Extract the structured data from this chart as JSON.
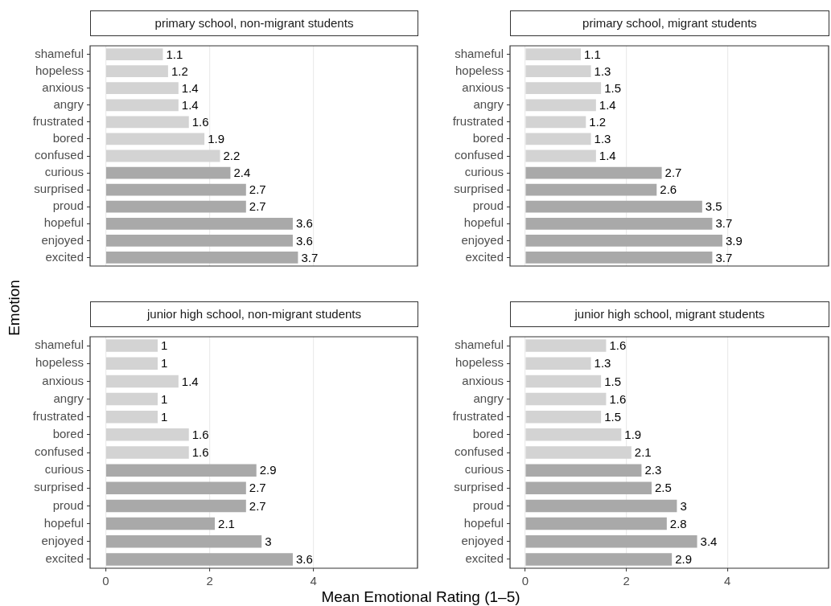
{
  "chart_data": [
    {
      "type": "bar",
      "orientation": "horizontal",
      "title": "primary school, non-migrant students",
      "ylabel": "Emotion",
      "categories": [
        "shameful",
        "hopeless",
        "anxious",
        "angry",
        "frustrated",
        "bored",
        "confused",
        "curious",
        "surprised",
        "proud",
        "hopeful",
        "enjoyed",
        "excited"
      ],
      "values": [
        1.1,
        1.2,
        1.4,
        1.4,
        1.6,
        1.9,
        2.2,
        2.4,
        2.7,
        2.7,
        3.6,
        3.6,
        3.7
      ],
      "colors": [
        "#d3d3d3",
        "#d3d3d3",
        "#d3d3d3",
        "#d3d3d3",
        "#d3d3d3",
        "#d3d3d3",
        "#d3d3d3",
        "#a9a9a9",
        "#a9a9a9",
        "#a9a9a9",
        "#a9a9a9",
        "#a9a9a9",
        "#a9a9a9"
      ],
      "xlim": [
        -0.3,
        6
      ],
      "xticks": [
        0,
        2,
        4
      ],
      "grid": "x",
      "data_labels": true,
      "tick_labels": "y"
    },
    {
      "type": "bar",
      "orientation": "horizontal",
      "title": "primary school, migrant students",
      "categories": [
        "shameful",
        "hopeless",
        "anxious",
        "angry",
        "frustrated",
        "bored",
        "confused",
        "curious",
        "surprised",
        "proud",
        "hopeful",
        "enjoyed",
        "excited"
      ],
      "values": [
        1.1,
        1.3,
        1.5,
        1.4,
        1.2,
        1.3,
        1.4,
        2.7,
        2.6,
        3.5,
        3.7,
        3.9,
        3.7
      ],
      "colors": [
        "#d3d3d3",
        "#d3d3d3",
        "#d3d3d3",
        "#d3d3d3",
        "#d3d3d3",
        "#d3d3d3",
        "#d3d3d3",
        "#a9a9a9",
        "#a9a9a9",
        "#a9a9a9",
        "#a9a9a9",
        "#a9a9a9",
        "#a9a9a9"
      ],
      "xlim": [
        -0.3,
        6
      ],
      "xticks": [
        0,
        2,
        4
      ],
      "grid": "x",
      "data_labels": true,
      "tick_labels": "y"
    },
    {
      "type": "bar",
      "orientation": "horizontal",
      "title": "junior high school, non-migrant students",
      "xlabel": "Mean Emotional Rating (1–5)",
      "categories": [
        "shameful",
        "hopeless",
        "anxious",
        "angry",
        "frustrated",
        "bored",
        "confused",
        "curious",
        "surprised",
        "proud",
        "hopeful",
        "enjoyed",
        "excited"
      ],
      "values": [
        1,
        1,
        1.4,
        1,
        1,
        1.6,
        1.6,
        2.9,
        2.7,
        2.7,
        2.1,
        3,
        3.6
      ],
      "colors": [
        "#d3d3d3",
        "#d3d3d3",
        "#d3d3d3",
        "#d3d3d3",
        "#d3d3d3",
        "#d3d3d3",
        "#d3d3d3",
        "#a9a9a9",
        "#a9a9a9",
        "#a9a9a9",
        "#a9a9a9",
        "#a9a9a9",
        "#a9a9a9"
      ],
      "xlim": [
        -0.3,
        6
      ],
      "xticks": [
        0,
        2,
        4
      ],
      "grid": "x",
      "data_labels": true
    },
    {
      "type": "bar",
      "orientation": "horizontal",
      "title": "junior high school, migrant students",
      "categories": [
        "shameful",
        "hopeless",
        "anxious",
        "angry",
        "frustrated",
        "bored",
        "confused",
        "curious",
        "surprised",
        "proud",
        "hopeful",
        "enjoyed",
        "excited"
      ],
      "values": [
        1.6,
        1.3,
        1.5,
        1.6,
        1.5,
        1.9,
        2.1,
        2.3,
        2.5,
        3,
        2.8,
        3.4,
        2.9
      ],
      "colors": [
        "#d3d3d3",
        "#d3d3d3",
        "#d3d3d3",
        "#d3d3d3",
        "#d3d3d3",
        "#d3d3d3",
        "#d3d3d3",
        "#a9a9a9",
        "#a9a9a9",
        "#a9a9a9",
        "#a9a9a9",
        "#a9a9a9",
        "#a9a9a9"
      ],
      "xlim": [
        -0.3,
        6
      ],
      "xticks": [
        0,
        2,
        4
      ],
      "grid": "x",
      "data_labels": true
    }
  ]
}
